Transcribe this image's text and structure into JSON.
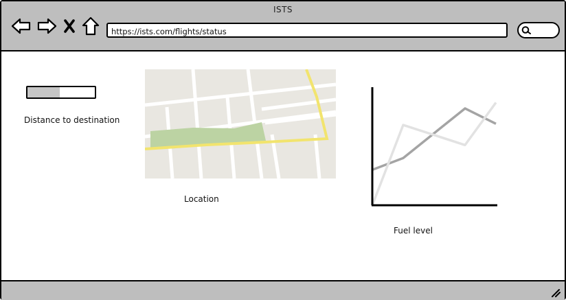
{
  "window": {
    "title": "ISTS"
  },
  "toolbar": {
    "url": "https://ists.com/flights/status"
  },
  "icons": {
    "back": "back-arrow-icon",
    "forward": "forward-arrow-icon",
    "stop": "close-icon",
    "home": "home-icon",
    "search": "search-icon",
    "resize": "resize-grip-icon"
  },
  "widgets": {
    "distance": {
      "label": "Distance to destination",
      "progress_fraction": 0.48
    },
    "location": {
      "label": "Location"
    },
    "fuel": {
      "label": "Fuel level"
    }
  },
  "chart_data": {
    "type": "line",
    "title": "",
    "xlabel": "",
    "ylabel": "",
    "x": [
      0,
      1,
      2,
      3,
      4
    ],
    "xlim": [
      0,
      4
    ],
    "ylim": [
      0,
      10
    ],
    "grid": false,
    "series": [
      {
        "values": [
          3,
          4,
          null,
          8.2,
          6.9
        ],
        "color": "#a4a4a4"
      },
      {
        "values": [
          0,
          6.8,
          null,
          5.1,
          8.7
        ],
        "color": "#e2e2e2"
      }
    ]
  }
}
